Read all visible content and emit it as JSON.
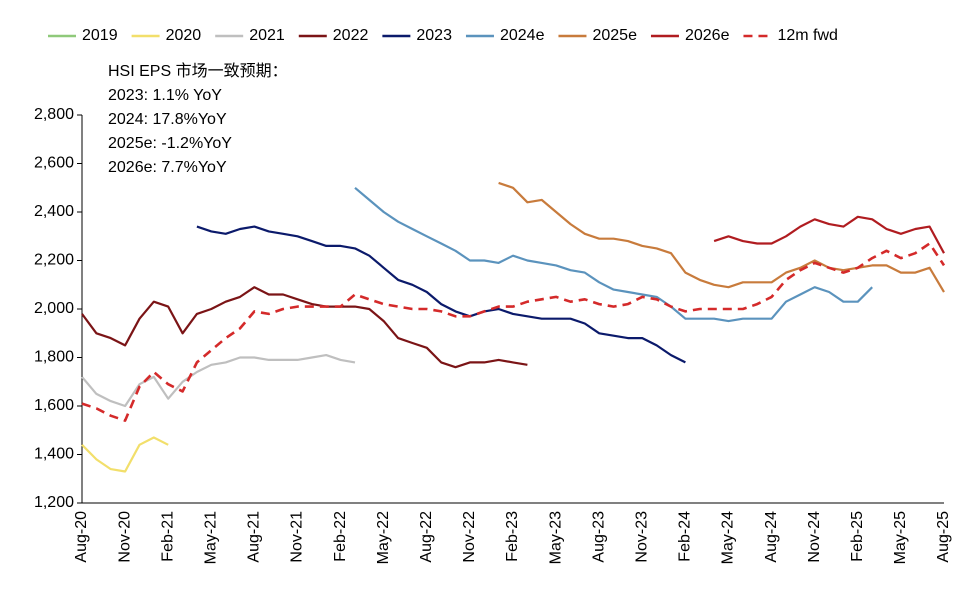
{
  "chart_data": {
    "type": "line",
    "annotations": [
      "HSI EPS 市场一致预期：",
      "2023: 1.1% YoY",
      "2024: 17.8%YoY",
      "2025e: -1.2%YoY",
      "2026e: 7.7%YoY"
    ],
    "categories": [
      "Aug-20",
      null,
      null,
      "Nov-20",
      null,
      null,
      "Feb-21",
      null,
      null,
      "May-21",
      null,
      null,
      "Aug-21",
      null,
      null,
      "Nov-21",
      null,
      null,
      "Feb-22",
      null,
      null,
      "May-22",
      null,
      null,
      "Aug-22",
      null,
      null,
      "Nov-22",
      null,
      null,
      "Feb-23",
      null,
      null,
      "May-23",
      null,
      null,
      "Aug-23",
      null,
      null,
      "Nov-23",
      null,
      null,
      "Feb-24",
      null,
      null,
      "May-24",
      null,
      null,
      "Aug-24",
      null,
      null,
      "Nov-24",
      null,
      null,
      "Feb-25",
      null,
      null,
      "May-25",
      null,
      null,
      "Aug-25"
    ],
    "ylim": [
      1200,
      2800
    ],
    "yticks": [
      {
        "value": 1200,
        "label": "1,200"
      },
      {
        "value": 1400,
        "label": "1,400"
      },
      {
        "value": 1600,
        "label": "1,600"
      },
      {
        "value": 1800,
        "label": "1,800"
      },
      {
        "value": 2000,
        "label": "2,000"
      },
      {
        "value": 2200,
        "label": "2,200"
      },
      {
        "value": 2400,
        "label": "2,400"
      },
      {
        "value": 2600,
        "label": "2,600"
      },
      {
        "value": 2800,
        "label": "2,800"
      }
    ],
    "legend": "top",
    "series": [
      {
        "name": "2019",
        "color": "#8fc97a",
        "values": [
          null,
          null,
          null,
          null,
          null,
          null,
          null,
          null,
          null,
          null,
          null,
          null,
          null,
          null,
          null,
          null,
          null,
          null,
          null,
          null,
          null,
          null,
          null,
          null,
          null,
          null,
          null,
          null,
          null,
          null,
          null,
          null,
          null,
          null,
          null,
          null,
          null,
          null,
          null,
          null,
          null,
          null,
          null,
          null,
          null,
          null,
          null,
          null,
          null,
          null,
          null,
          null,
          null,
          null,
          null,
          null,
          null,
          null,
          null,
          null,
          null
        ]
      },
      {
        "name": "2020",
        "color": "#f2df6b",
        "values": [
          1440,
          1380,
          1340,
          1330,
          1440,
          1470,
          1440,
          null,
          null,
          null,
          null,
          null,
          null,
          null,
          null,
          null,
          null,
          null,
          null,
          null,
          null,
          null,
          null,
          null,
          null,
          null,
          null,
          null,
          null,
          null,
          null,
          null,
          null,
          null,
          null,
          null,
          null,
          null,
          null,
          null,
          null,
          null,
          null,
          null,
          null,
          null,
          null,
          null,
          null,
          null,
          null,
          null,
          null,
          null,
          null,
          null,
          null,
          null,
          null,
          null,
          null
        ]
      },
      {
        "name": "2021",
        "color": "#bfbfbf",
        "values": [
          1720,
          1650,
          1620,
          1600,
          1690,
          1720,
          1630,
          1700,
          1740,
          1770,
          1780,
          1800,
          1800,
          1790,
          1790,
          1790,
          1800,
          1810,
          1790,
          1780,
          null,
          null,
          null,
          null,
          null,
          null,
          null,
          null,
          null,
          null,
          null,
          null,
          null,
          null,
          null,
          null,
          null,
          null,
          null,
          null,
          null,
          null,
          null,
          null,
          null,
          null,
          null,
          null,
          null,
          null,
          null,
          null,
          null,
          null,
          null,
          null,
          null,
          null,
          null,
          null,
          null
        ]
      },
      {
        "name": "2022",
        "color": "#7b1416",
        "values": [
          1980,
          1900,
          1880,
          1850,
          1960,
          2030,
          2010,
          1900,
          1980,
          2000,
          2030,
          2050,
          2090,
          2060,
          2060,
          2040,
          2020,
          2010,
          2010,
          2010,
          2000,
          1950,
          1880,
          1860,
          1840,
          1780,
          1760,
          1780,
          1780,
          1790,
          1780,
          1770,
          null,
          null,
          null,
          null,
          null,
          null,
          null,
          null,
          null,
          null,
          null,
          null,
          null,
          null,
          null,
          null,
          null,
          null,
          null,
          null,
          null,
          null,
          null,
          null,
          null,
          null,
          null,
          null,
          null
        ]
      },
      {
        "name": "2023",
        "color": "#0b1a6b",
        "values": [
          null,
          null,
          null,
          null,
          null,
          null,
          null,
          null,
          2340,
          2320,
          2310,
          2330,
          2340,
          2320,
          2310,
          2300,
          2280,
          2260,
          2260,
          2250,
          2220,
          2170,
          2120,
          2100,
          2070,
          2020,
          1990,
          1970,
          1990,
          2000,
          1980,
          1970,
          1960,
          1960,
          1960,
          1940,
          1900,
          1890,
          1880,
          1880,
          1850,
          1810,
          1780,
          null,
          null,
          null,
          null,
          null,
          null,
          null,
          null,
          null,
          null,
          null,
          null,
          null,
          null,
          null,
          null,
          null,
          null
        ]
      },
      {
        "name": "2024e",
        "color": "#5b93bd",
        "values": [
          null,
          null,
          null,
          null,
          null,
          null,
          null,
          null,
          null,
          null,
          null,
          null,
          null,
          null,
          null,
          null,
          null,
          null,
          null,
          2500,
          2450,
          2400,
          2360,
          2330,
          2300,
          2270,
          2240,
          2200,
          2200,
          2190,
          2220,
          2200,
          2190,
          2180,
          2160,
          2150,
          2110,
          2080,
          2070,
          2060,
          2050,
          2010,
          1960,
          1960,
          1960,
          1950,
          1960,
          1960,
          1960,
          2030,
          2060,
          2090,
          2070,
          2030,
          2030,
          2090,
          null,
          null,
          null,
          null,
          null
        ]
      },
      {
        "name": "2025e",
        "color": "#c87b3c",
        "values": [
          null,
          null,
          null,
          null,
          null,
          null,
          null,
          null,
          null,
          null,
          null,
          null,
          null,
          null,
          null,
          null,
          null,
          null,
          null,
          null,
          null,
          null,
          null,
          null,
          null,
          null,
          null,
          null,
          null,
          2520,
          2500,
          2440,
          2450,
          2400,
          2350,
          2310,
          2290,
          2290,
          2280,
          2260,
          2250,
          2230,
          2150,
          2120,
          2100,
          2090,
          2110,
          2110,
          2110,
          2150,
          2170,
          2200,
          2170,
          2160,
          2170,
          2180,
          2180,
          2150,
          2150,
          2170,
          2070
        ]
      },
      {
        "name": "2026e",
        "color": "#b01c20",
        "values": [
          null,
          null,
          null,
          null,
          null,
          null,
          null,
          null,
          null,
          null,
          null,
          null,
          null,
          null,
          null,
          null,
          null,
          null,
          null,
          null,
          null,
          null,
          null,
          null,
          null,
          null,
          null,
          null,
          null,
          null,
          null,
          null,
          null,
          null,
          null,
          null,
          null,
          null,
          null,
          null,
          null,
          null,
          null,
          null,
          2280,
          2300,
          2280,
          2270,
          2270,
          2300,
          2340,
          2370,
          2350,
          2340,
          2380,
          2370,
          2330,
          2310,
          2330,
          2340,
          2230
        ]
      },
      {
        "name": "12m fwd",
        "color": "#d42a2a",
        "dashed": true,
        "values": [
          1610,
          1590,
          1560,
          1540,
          1680,
          1740,
          1690,
          1660,
          1780,
          1830,
          1880,
          1920,
          1990,
          1980,
          2000,
          2010,
          2010,
          2010,
          2010,
          2060,
          2040,
          2020,
          2010,
          2000,
          2000,
          1990,
          1970,
          1970,
          1990,
          2010,
          2010,
          2030,
          2040,
          2050,
          2030,
          2040,
          2020,
          2010,
          2020,
          2050,
          2040,
          2010,
          1990,
          2000,
          2000,
          2000,
          2000,
          2020,
          2050,
          2120,
          2160,
          2190,
          2170,
          2150,
          2170,
          2210,
          2240,
          2210,
          2230,
          2270,
          2180
        ]
      }
    ]
  }
}
